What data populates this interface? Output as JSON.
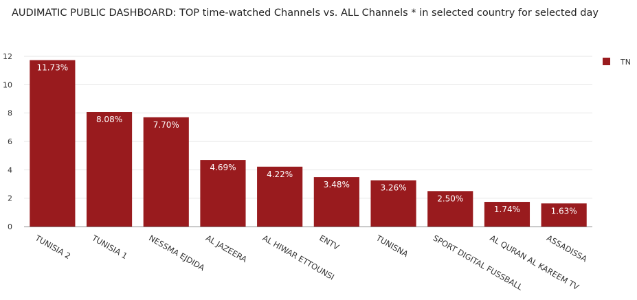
{
  "chart_data": {
    "type": "bar",
    "title": "AUDIMATIC PUBLIC DASHBOARD: TOP time-watched Channels vs. ALL Channels * in selected country for selected day",
    "xlabel": "",
    "ylabel": "",
    "categories": [
      "TUNISIA 2",
      "TUNISIA 1",
      "NESSMA EJDIDA",
      "AL JAZEERA",
      "AL HIWAR ETTOUNSI",
      "ENTV",
      "TUNISNA",
      "SPORT DIGITAL FUSSBALL",
      "AL QURAN AL KAREEM TV",
      "ASSADISSA"
    ],
    "series": [
      {
        "name": "TN",
        "values": [
          11.73,
          8.08,
          7.7,
          4.69,
          4.22,
          3.48,
          3.26,
          2.5,
          1.74,
          1.63
        ],
        "labels": [
          "11.73%",
          "8.08%",
          "7.70%",
          "4.69%",
          "4.22%",
          "3.48%",
          "3.26%",
          "2.50%",
          "1.74%",
          "1.63%"
        ],
        "color": "#991b1e"
      }
    ],
    "ylim": [
      0,
      12
    ],
    "yticks": [
      "0",
      "2",
      "4",
      "6",
      "8",
      "10",
      "12"
    ],
    "grid": true,
    "legend": "top-right"
  }
}
